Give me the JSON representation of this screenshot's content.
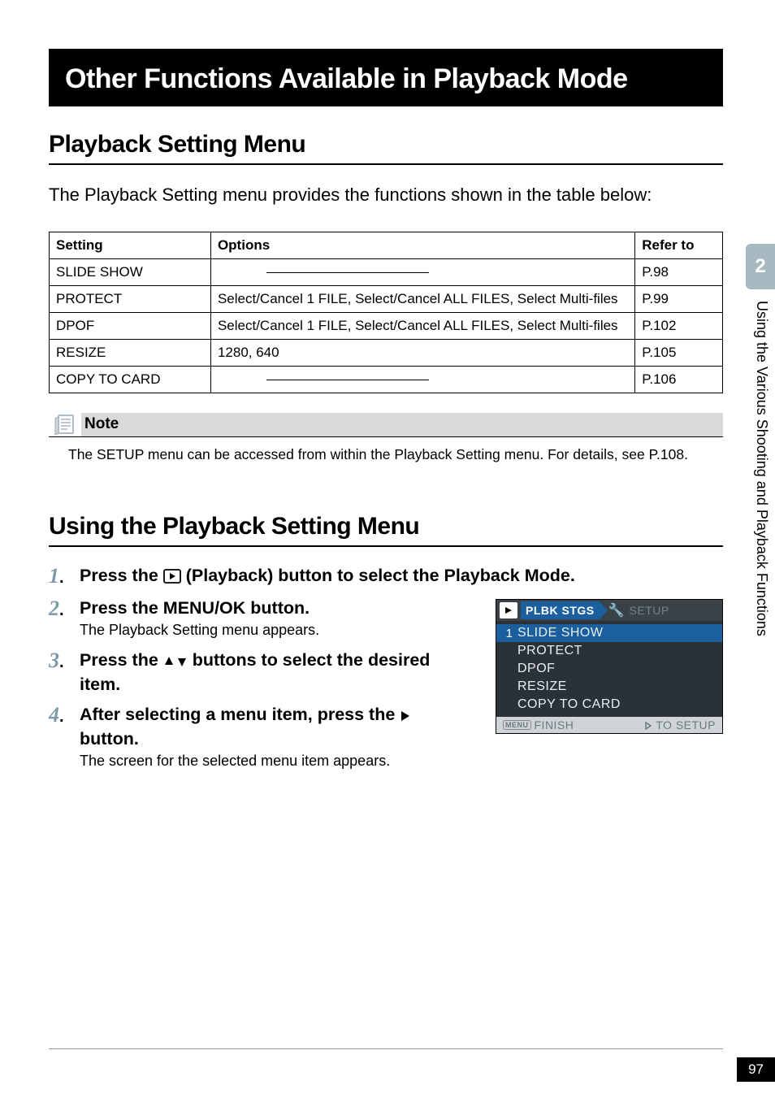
{
  "chapter_title": "Other Functions Available in Playback Mode",
  "section1": {
    "title": "Playback Setting Menu",
    "intro": "The Playback Setting menu provides the functions shown in the table below:"
  },
  "table": {
    "headers": {
      "c1": "Setting",
      "c2": "Options",
      "c3": "Refer to"
    },
    "rows": [
      {
        "setting": "SLIDE SHOW",
        "options": "",
        "dash": true,
        "refer": "P.98"
      },
      {
        "setting": "PROTECT",
        "options": "Select/Cancel 1 FILE, Select/Cancel ALL FILES, Select Multi-files",
        "dash": false,
        "refer": "P.99"
      },
      {
        "setting": "DPOF",
        "options": "Select/Cancel 1 FILE, Select/Cancel ALL FILES, Select Multi-files",
        "dash": false,
        "refer": "P.102"
      },
      {
        "setting": "RESIZE",
        "options": "1280, 640",
        "dash": false,
        "refer": "P.105"
      },
      {
        "setting": "COPY TO CARD",
        "options": "",
        "dash": true,
        "refer": "P.106"
      }
    ]
  },
  "note": {
    "label": "Note",
    "body": "The SETUP menu can be accessed from within the Playback Setting menu. For details, see P.108."
  },
  "section2": {
    "title": "Using the Playback Setting Menu"
  },
  "steps": {
    "s1": {
      "pre": "Press the ",
      "post": " (Playback) button to select the Playback Mode."
    },
    "s2": {
      "pre": "Press the ",
      "mid": "MENU/OK",
      "post": " button.",
      "desc": "The Playback Setting menu appears."
    },
    "s3": {
      "pre": "Press the ",
      "post": " buttons to select the desired item."
    },
    "s4": {
      "pre": "After selecting a menu item, press the ",
      "post": " button.",
      "desc": "The screen for the selected menu item appears."
    }
  },
  "screenshot": {
    "tab_active": "PLBK STGS",
    "tab_inactive": "SETUP",
    "items": [
      "SLIDE SHOW",
      "PROTECT",
      "DPOF",
      "RESIZE",
      "COPY TO CARD"
    ],
    "index_label": "1",
    "footer_left": "FINISH",
    "footer_right": "TO SETUP",
    "menu_badge": "MENU"
  },
  "side": {
    "tab_number": "2",
    "label": "Using the Various Shooting and Playback Functions"
  },
  "page_number": "97",
  "colors": {
    "side_tab_bg": "#a8b8c0",
    "step_num": "#7d9aa8",
    "note_bg": "#d9d9d9",
    "ss_bg": "#2a3238",
    "ss_accent": "#1c5f9e",
    "ss_footer_bg": "#cfd4d7"
  },
  "table_col_widths": {
    "c1": "24%",
    "c2": "63%",
    "c3": "13%"
  }
}
